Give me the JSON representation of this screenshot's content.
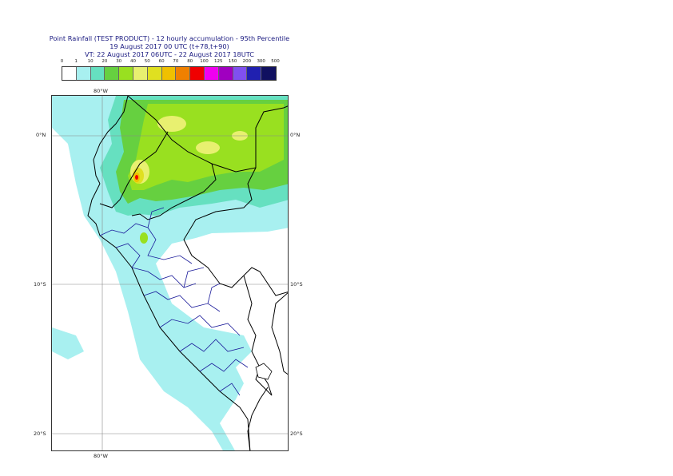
{
  "title": {
    "line1": "Point Rainfall (TEST PRODUCT) - 12 hourly accumulation - 95th Percentile",
    "line2": "19 August 2017 00 UTC (t+78,t+90)",
    "line3": "VT: 22 August 2017 06UTC - 22 August 2017 18UTC"
  },
  "legend": {
    "labels": [
      "0",
      "1",
      "10",
      "20",
      "30",
      "40",
      "50",
      "60",
      "70",
      "80",
      "100",
      "125",
      "150",
      "200",
      "300",
      "500"
    ],
    "colors": [
      "#ffffff",
      "#a8f0f0",
      "#66e0c0",
      "#66d040",
      "#99e020",
      "#e8f070",
      "#e0e020",
      "#f0c000",
      "#f08000",
      "#f00000",
      "#f000f0",
      "#a000c0",
      "#8050f0",
      "#2020b0",
      "#101060"
    ]
  },
  "axes": {
    "lon_top": "80°W",
    "lon_bottom": "80°W",
    "lat_labels_left": [
      "0°N",
      "10°S",
      "20°S"
    ],
    "lat_labels_right": [
      "0°N",
      "10°S",
      "20°S"
    ]
  }
}
